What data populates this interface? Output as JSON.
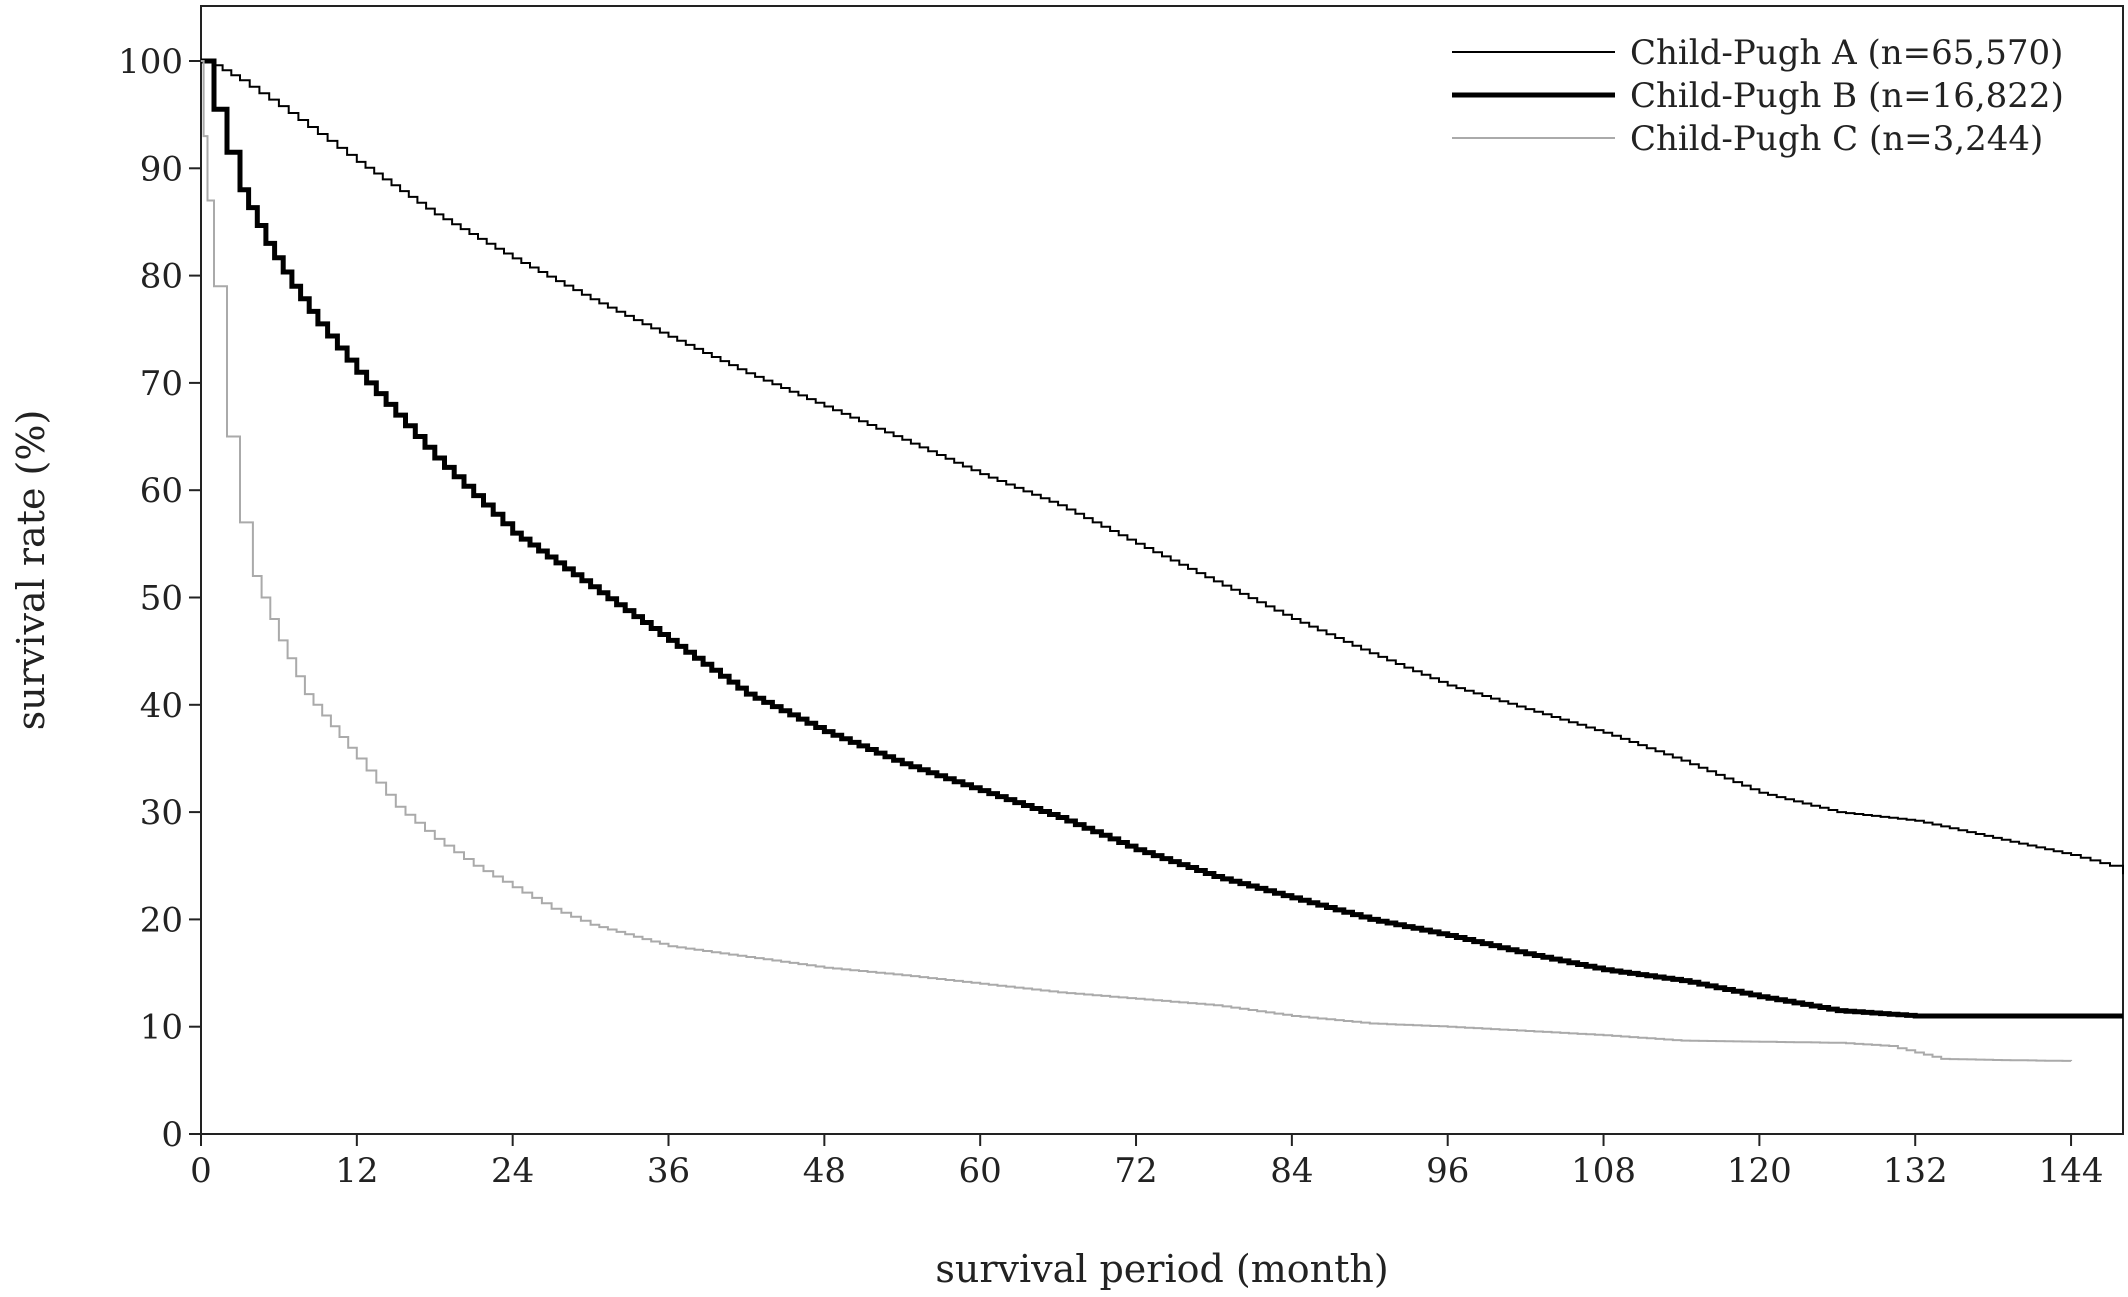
{
  "chart_data": {
    "type": "line",
    "title": "",
    "xlabel": "survival period (month)",
    "ylabel": "survival rate (%)",
    "xlim": [
      0,
      148
    ],
    "ylim": [
      0,
      105
    ],
    "xticks": [
      0,
      12,
      24,
      36,
      48,
      60,
      72,
      84,
      96,
      108,
      120,
      132,
      144
    ],
    "yticks": [
      0,
      10,
      20,
      30,
      40,
      50,
      60,
      70,
      80,
      90,
      100
    ],
    "grid": false,
    "legend_position": "top-right",
    "series": [
      {
        "name": "Child-Pugh A (n=65,570)",
        "color": "#000000",
        "style": "thin",
        "x": [
          0,
          1,
          3,
          6,
          9,
          12,
          18,
          24,
          30,
          36,
          42,
          48,
          54,
          60,
          66,
          72,
          78,
          84,
          90,
          96,
          102,
          108,
          114,
          120,
          126,
          132,
          138,
          144,
          147,
          148
        ],
        "y": [
          100,
          99.6,
          98.2,
          95.8,
          93.2,
          90.6,
          85.7,
          81.6,
          77.8,
          74.3,
          70.9,
          67.8,
          64.7,
          61.5,
          58.6,
          55.0,
          51.5,
          48.0,
          44.8,
          41.8,
          39.6,
          37.4,
          34.8,
          31.8,
          30.0,
          29.2,
          27.6,
          26.0,
          25.0,
          24.2
        ]
      },
      {
        "name": "Child-Pugh B (n=16,822)",
        "color": "#000000",
        "style": "thick",
        "x": [
          0,
          1,
          2,
          3,
          5,
          7,
          9,
          12,
          15,
          18,
          21,
          24,
          30,
          36,
          42,
          48,
          54,
          60,
          66,
          72,
          78,
          84,
          90,
          96,
          102,
          108,
          114,
          120,
          126,
          132,
          138,
          144,
          148
        ],
        "y": [
          100,
          95.5,
          91.5,
          88.0,
          83.0,
          79.0,
          75.5,
          71.0,
          67.0,
          63.0,
          59.5,
          56.0,
          51.0,
          46.0,
          41.0,
          37.5,
          34.5,
          32.0,
          29.5,
          26.5,
          24.0,
          22.0,
          20.0,
          18.5,
          16.8,
          15.3,
          14.3,
          12.8,
          11.5,
          11.0,
          11.0,
          11.0,
          11.0
        ]
      },
      {
        "name": "Child-Pugh C (n=3,244)",
        "color": "#aaaaaa",
        "style": "thin",
        "x": [
          0,
          0.2,
          0.5,
          1,
          2,
          3,
          4,
          6,
          8,
          10,
          12,
          15,
          18,
          21,
          24,
          27,
          30,
          36,
          42,
          48,
          54,
          60,
          66,
          72,
          78,
          84,
          90,
          96,
          102,
          108,
          114,
          120,
          126,
          130,
          134,
          138,
          144
        ],
        "y": [
          100,
          93.0,
          87.0,
          79.0,
          65.0,
          57.0,
          52.0,
          46.0,
          41.0,
          38.0,
          35.0,
          30.5,
          27.5,
          25.0,
          23.0,
          21.0,
          19.5,
          17.5,
          16.5,
          15.5,
          14.8,
          14.0,
          13.2,
          12.6,
          12.0,
          11.0,
          10.3,
          10.0,
          9.6,
          9.2,
          8.7,
          8.6,
          8.5,
          8.2,
          7.0,
          6.9,
          6.8
        ]
      }
    ]
  }
}
